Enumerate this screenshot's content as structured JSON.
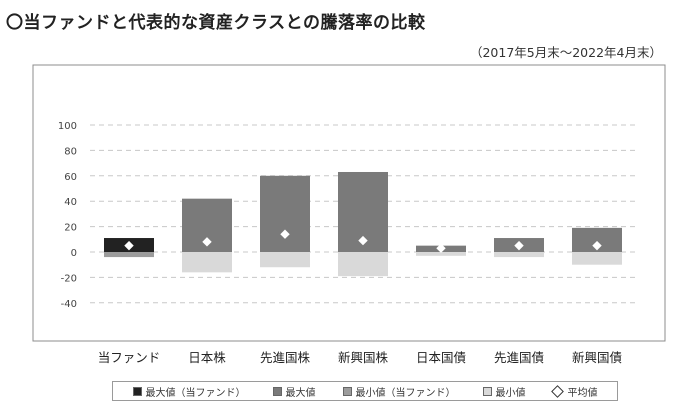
{
  "title": "〇当ファンドと代表的な資産クラスとの騰落率の比較",
  "period": "（2017年5月末〜2022年4月末）",
  "colors": {
    "fund_max": "#222222",
    "max": "#7a7a7a",
    "fund_min": "#9c9c9c",
    "min": "#d9d9d9",
    "grid": "#c8c8c8",
    "frame": "#8c8c8c"
  },
  "legend": [
    {
      "label": "最大値（当ファンド）",
      "swatch": "fund_max",
      "shape": "square"
    },
    {
      "label": "最大値",
      "swatch": "max",
      "shape": "square"
    },
    {
      "label": "最小値（当ファンド）",
      "swatch": "fund_min",
      "shape": "square"
    },
    {
      "label": "最小値",
      "swatch": "min",
      "shape": "square"
    },
    {
      "label": "平均値",
      "swatch": "",
      "shape": "diamond"
    }
  ],
  "chart_data": {
    "type": "bar",
    "title": "〇当ファンドと代表的な資産クラスとの騰落率の比較",
    "subtitle": "（2017年5月末〜2022年4月末）",
    "xlabel": "",
    "ylabel": "",
    "ylim": [
      -40,
      100
    ],
    "yticks": [
      -40,
      -20,
      0,
      20,
      40,
      60,
      80,
      100
    ],
    "grid": true,
    "legend_position": "bottom",
    "categories": [
      "当ファンド",
      "日本株",
      "先進国株",
      "新興国株",
      "日本国債",
      "先進国債",
      "新興国債"
    ],
    "series": [
      {
        "name": "最大値",
        "values": [
          11,
          42,
          60,
          63,
          5,
          11,
          19
        ]
      },
      {
        "name": "最小値",
        "values": [
          -4,
          -16,
          -12,
          -19,
          -3,
          -4,
          -10
        ]
      },
      {
        "name": "平均値",
        "values": [
          5,
          8,
          14,
          9,
          3,
          5,
          5
        ]
      }
    ]
  }
}
